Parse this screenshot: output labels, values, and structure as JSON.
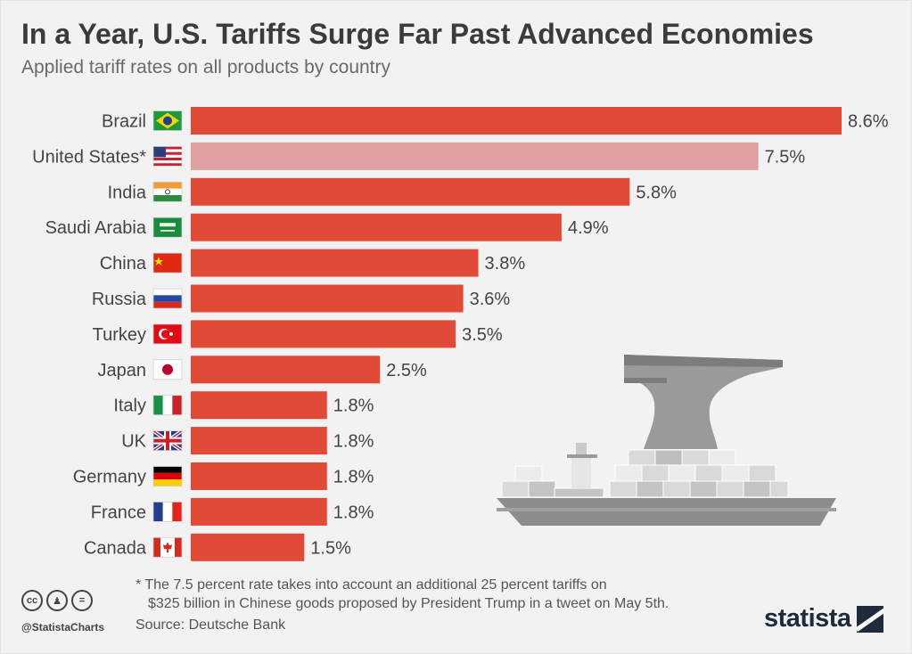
{
  "header": {
    "title": "In a Year, U.S. Tariffs Surge Far Past Advanced Economies",
    "subtitle": "Applied tariff rates on all products by country"
  },
  "footer": {
    "footnote_line1": "* The 7.5 percent rate takes into account an additional 25 percent tariffs on",
    "footnote_line2": "$325 billion in Chinese goods proposed by President Trump in a tweet on May 5th.",
    "source": "Source: Deutsche Bank",
    "handle": "@StatistaCharts",
    "brand": "statista",
    "license_icons": [
      "cc-icon",
      "attribution-icon",
      "no-derivatives-icon"
    ]
  },
  "colors": {
    "bar": "#e04a36",
    "highlight_bar": "#dea0a0",
    "background": "#f2f2f2"
  },
  "chart_data": {
    "type": "bar",
    "orientation": "horizontal",
    "categories": [
      "Brazil",
      "United States*",
      "India",
      "Saudi Arabia",
      "China",
      "Russia",
      "Turkey",
      "Japan",
      "Italy",
      "UK",
      "Germany",
      "France",
      "Canada"
    ],
    "values": [
      8.6,
      7.5,
      5.8,
      4.9,
      3.8,
      3.6,
      3.5,
      2.5,
      1.8,
      1.8,
      1.8,
      1.8,
      1.5
    ],
    "value_labels": [
      "8.6%",
      "7.5%",
      "5.8%",
      "4.9%",
      "3.8%",
      "3.6%",
      "3.5%",
      "2.5%",
      "1.8%",
      "1.8%",
      "1.8%",
      "1.8%",
      "1.5%"
    ],
    "highlight": "United States*",
    "flags": [
      "brazil",
      "usa",
      "india",
      "saudi-arabia",
      "china",
      "russia",
      "turkey",
      "japan",
      "italy",
      "uk",
      "germany",
      "france",
      "canada"
    ],
    "xlim": [
      0,
      8.6
    ],
    "grid": false,
    "legend": "none"
  }
}
